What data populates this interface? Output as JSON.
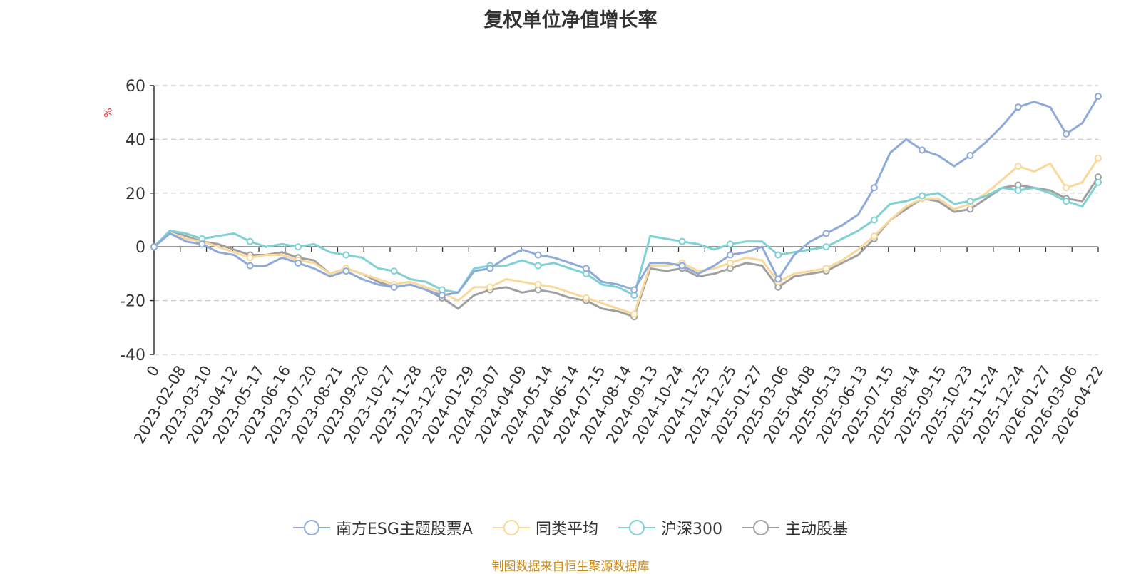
{
  "chart_data": {
    "type": "line",
    "title": "复权单位净值增长率",
    "unit_label": "%",
    "ylim": [
      -40,
      60
    ],
    "yticks": [
      -40,
      -20,
      0,
      20,
      40,
      60
    ],
    "x_tick_labels": [
      "0",
      "2023-02-08",
      "2023-03-10",
      "2023-04-12",
      "2023-05-17",
      "2023-06-16",
      "2023-07-20",
      "2023-08-21",
      "2023-09-20",
      "2023-10-27",
      "2023-11-28",
      "2023-12-28",
      "2024-01-29",
      "2024-03-07",
      "2024-04-09",
      "2024-05-14",
      "2024-06-14",
      "2024-07-15",
      "2024-08-14",
      "2024-09-13",
      "2024-10-24",
      "2024-11-25",
      "2024-12-25",
      "2025-01-27",
      "2025-03-06",
      "2025-04-08",
      "2025-05-13",
      "2025-06-13",
      "2025-07-15",
      "2025-08-14",
      "2025-09-15",
      "2025-10-23",
      "2025-11-24",
      "2025-12-24",
      "2026-01-27",
      "2026-03-06",
      "2026-04-22"
    ],
    "grid": "horizontal-dashed",
    "legend_position": "bottom",
    "series": [
      {
        "name": "南方ESG主题股票A",
        "color": "#8eaadb",
        "values": [
          0,
          5,
          2,
          1,
          -2,
          -3,
          -7,
          -7,
          -4,
          -6,
          -8,
          -11,
          -9,
          -12,
          -14,
          -15,
          -14,
          -16,
          -18,
          -17,
          -9,
          -8,
          -4,
          -1,
          -3,
          -4,
          -6,
          -8,
          -13,
          -14,
          -16,
          -6,
          -6,
          -7,
          -10,
          -7,
          -3,
          -2,
          0,
          -12,
          -3,
          2,
          5,
          8,
          12,
          22,
          35,
          40,
          36,
          34,
          30,
          34,
          39,
          45,
          52,
          54,
          52,
          42,
          46,
          56
        ]
      },
      {
        "name": "同类平均",
        "color": "#f9d899",
        "values": [
          0,
          5,
          3,
          2,
          0,
          -2,
          -4,
          -3,
          -3,
          -5,
          -6,
          -10,
          -8,
          -10,
          -12,
          -14,
          -13,
          -15,
          -17,
          -20,
          -15,
          -15,
          -12,
          -13,
          -14,
          -15,
          -17,
          -19,
          -21,
          -23,
          -25,
          -7,
          -7,
          -6,
          -9,
          -8,
          -6,
          -4,
          -5,
          -13,
          -10,
          -9,
          -8,
          -5,
          -1,
          4,
          10,
          15,
          18,
          18,
          14,
          16,
          20,
          25,
          30,
          28,
          31,
          22,
          24,
          33
        ]
      },
      {
        "name": "沪深300",
        "color": "#7fd1d4",
        "values": [
          0,
          6,
          5,
          3,
          4,
          5,
          2,
          0,
          1,
          0,
          1,
          -2,
          -3,
          -4,
          -8,
          -9,
          -12,
          -13,
          -16,
          -17,
          -8,
          -7,
          -7,
          -5,
          -7,
          -6,
          -8,
          -10,
          -14,
          -15,
          -18,
          4,
          3,
          2,
          1,
          -1,
          1,
          2,
          2,
          -3,
          -2,
          -1,
          0,
          3,
          6,
          10,
          16,
          17,
          19,
          20,
          16,
          17,
          19,
          22,
          21,
          22,
          20,
          17,
          15,
          24
        ]
      },
      {
        "name": "主动股基",
        "color": "#a0a0a0",
        "values": [
          0,
          6,
          4,
          2,
          1,
          -1,
          -3,
          -3,
          -2,
          -4,
          -5,
          -10,
          -8,
          -10,
          -13,
          -15,
          -14,
          -16,
          -19,
          -23,
          -18,
          -16,
          -15,
          -17,
          -16,
          -17,
          -19,
          -20,
          -23,
          -24,
          -26,
          -8,
          -9,
          -8,
          -11,
          -10,
          -8,
          -6,
          -7,
          -15,
          -11,
          -10,
          -9,
          -6,
          -3,
          3,
          10,
          14,
          18,
          17,
          13,
          14,
          18,
          22,
          23,
          22,
          21,
          18,
          17,
          26
        ]
      }
    ]
  },
  "footer": {
    "source": "制图数据来自恒生聚源数据库"
  }
}
